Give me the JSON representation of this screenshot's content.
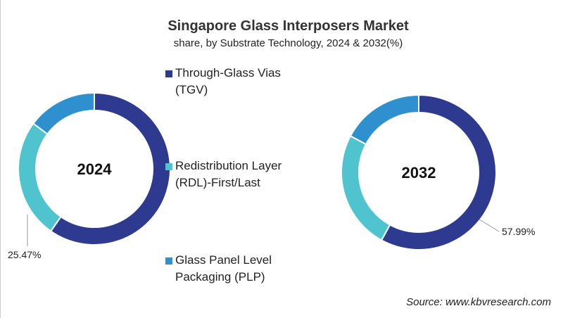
{
  "chart_data": {
    "type": "donut",
    "title": "Singapore Glass Interposers Market",
    "subtitle": "share, by Substrate Technology, 2024 & 2032(%)",
    "legend": [
      "Through-Glass Vias (TGV)",
      "Redistribution Layer (RDL)-First/Last",
      "Glass Panel Level Packaging (PLP)"
    ],
    "legend_lines": [
      [
        "Through-Glass Vias",
        "(TGV)"
      ],
      [
        "Redistribution Layer",
        "(RDL)-First/Last"
      ],
      [
        "Glass Panel Level",
        "Packaging (PLP)"
      ]
    ],
    "colors": [
      "#2e3a8f",
      "#4fc4cf",
      "#2e90cf"
    ],
    "charts": [
      {
        "label": "2024",
        "values": [
          59.7,
          25.47,
          14.83
        ],
        "data_label": "25.47%"
      },
      {
        "label": "2032",
        "values": [
          57.99,
          24.8,
          17.21
        ],
        "data_label": "57.99%"
      }
    ],
    "source": "Source: www.kbvresearch.com"
  }
}
